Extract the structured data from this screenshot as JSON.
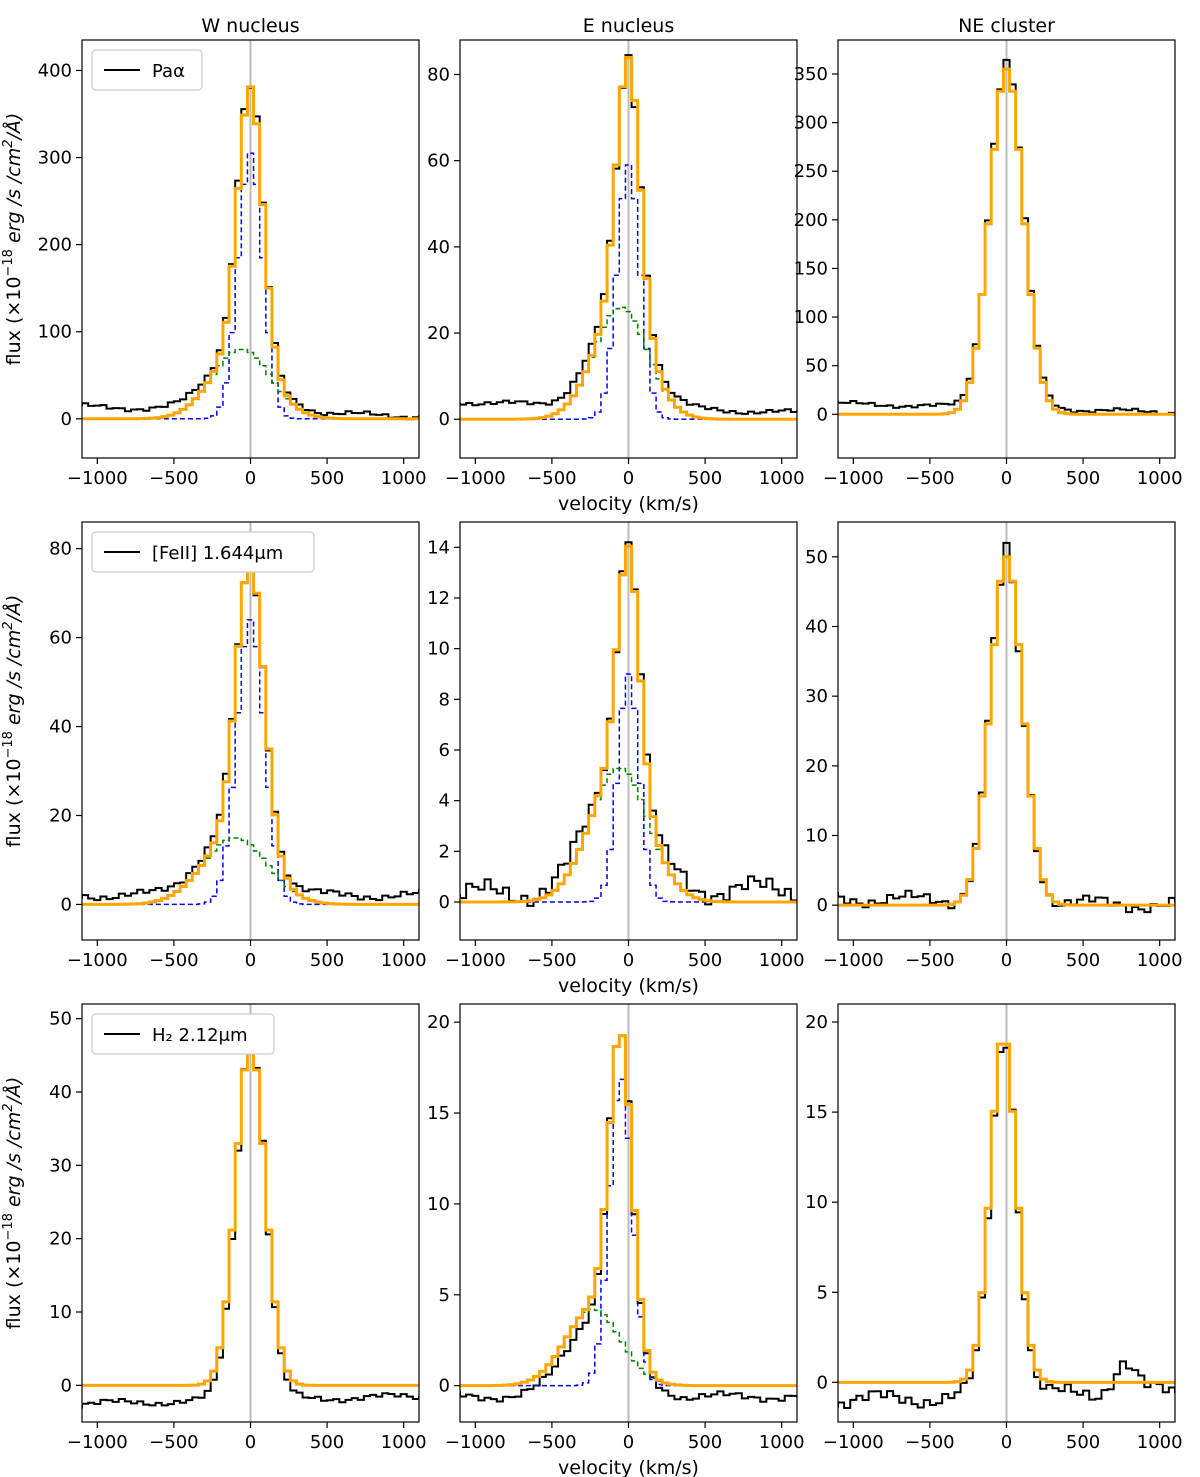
{
  "figure": {
    "column_titles": [
      "W nucleus",
      "E nucleus",
      "NE cluster"
    ],
    "ylabel": "flux (×10⁻¹⁸ erg /s /cm²/Å)",
    "xlabel": "velocity (km/s)",
    "legend_labels": [
      "Paα",
      "[FeII] 1.644μm",
      "H₂ 2.12μm"
    ],
    "colors": {
      "observed": "#000000",
      "total_fit": "#ffa500",
      "narrow_component": "#0000ff",
      "broad_component": "#008000",
      "zero_velocity": "#bbbbbb"
    }
  },
  "chart_data": [
    {
      "type": "line",
      "row": 0,
      "col": 0,
      "line": "Paα",
      "region": "W nucleus",
      "xlim": [
        -1100,
        1100
      ],
      "ylim": [
        -45,
        435
      ],
      "xticks": [
        -1000,
        -500,
        0,
        500,
        1000
      ],
      "yticks": [
        0,
        100,
        200,
        300,
        400
      ],
      "xlabel": "",
      "ylabel": "flux (×10⁻¹⁸ erg /s /cm²/Å)",
      "title": "W nucleus",
      "legend": "Paα",
      "fit": {
        "narrow": {
          "amp": 305,
          "center": 0,
          "sigma": 80
        },
        "broad": {
          "amp": 80,
          "center": -60,
          "sigma": 190
        }
      },
      "continuum_left": 14,
      "continuum_right": 3,
      "noise": 4,
      "pin": {
        "0": 380
      }
    },
    {
      "type": "line",
      "row": 0,
      "col": 1,
      "line": "Paα",
      "region": "E nucleus",
      "xlim": [
        -1100,
        1100
      ],
      "ylim": [
        -9,
        88
      ],
      "xticks": [
        -1000,
        -500,
        0,
        500,
        1000
      ],
      "yticks": [
        0,
        20,
        40,
        60,
        80
      ],
      "xlabel": "velocity (km/s)",
      "ylabel": "",
      "title": "E nucleus",
      "legend": "",
      "fit": {
        "narrow": {
          "amp": 59,
          "center": 0,
          "sigma": 75
        },
        "broad": {
          "amp": 26,
          "center": -50,
          "sigma": 175
        }
      },
      "continuum_left": 4,
      "continuum_right": 1.5,
      "noise": 0.8,
      "pin": {
        "0": 84.5
      }
    },
    {
      "type": "line",
      "row": 0,
      "col": 2,
      "line": "Paα",
      "region": "NE cluster",
      "xlim": [
        -1100,
        1100
      ],
      "ylim": [
        -45,
        385
      ],
      "xticks": [
        -1000,
        -500,
        0,
        500,
        1000
      ],
      "yticks": [
        0,
        50,
        100,
        150,
        200,
        250,
        300,
        350
      ],
      "xlabel": "",
      "ylabel": "",
      "title": "NE cluster",
      "legend": "",
      "fit": {
        "narrow": {
          "amp": 355,
          "center": 0,
          "sigma": 110
        },
        "broad": null
      },
      "show_components": false,
      "continuum_left": 11,
      "continuum_right": 2,
      "noise": 3,
      "pin": {}
    },
    {
      "type": "line",
      "row": 1,
      "col": 0,
      "line": "[FeII] 1.644μm",
      "region": "W nucleus",
      "xlim": [
        -1100,
        1100
      ],
      "ylim": [
        -8,
        86
      ],
      "xticks": [
        -1000,
        -500,
        0,
        500,
        1000
      ],
      "yticks": [
        0,
        20,
        40,
        60,
        80
      ],
      "xlabel": "",
      "ylabel": "flux (×10⁻¹⁸ erg /s /cm²/Å)",
      "title": "",
      "legend": "[FeII] 1.644μm",
      "fit": {
        "narrow": {
          "amp": 64,
          "center": 0,
          "sigma": 90
        },
        "broad": {
          "amp": 15,
          "center": -100,
          "sigma": 210
        }
      },
      "continuum_left": 2,
      "continuum_right": 2,
      "noise": 1.2,
      "pin": {
        "0": 77
      }
    },
    {
      "type": "line",
      "row": 1,
      "col": 1,
      "line": "[FeII] 1.644μm",
      "region": "E nucleus",
      "xlim": [
        -1100,
        1100
      ],
      "ylim": [
        -1.5,
        15
      ],
      "xticks": [
        -1000,
        -500,
        0,
        500,
        1000
      ],
      "yticks": [
        0,
        2,
        4,
        6,
        8,
        10,
        12,
        14
      ],
      "xlabel": "velocity (km/s)",
      "ylabel": "",
      "title": "",
      "legend": "",
      "fit": {
        "narrow": {
          "amp": 9,
          "center": 0,
          "sigma": 70
        },
        "broad": {
          "amp": 5.3,
          "center": -60,
          "sigma": 190
        }
      },
      "continuum_left": 0.3,
      "continuum_right": 0.5,
      "noise": 0.6,
      "pin": {
        "0": 14.2
      }
    },
    {
      "type": "line",
      "row": 1,
      "col": 2,
      "line": "[FeII] 1.644μm",
      "region": "NE cluster",
      "xlim": [
        -1100,
        1100
      ],
      "ylim": [
        -5,
        55
      ],
      "xticks": [
        -1000,
        -500,
        0,
        500,
        1000
      ],
      "yticks": [
        0,
        10,
        20,
        30,
        40,
        50
      ],
      "xlabel": "",
      "ylabel": "",
      "title": "",
      "legend": "",
      "fit": {
        "narrow": {
          "amp": 50,
          "center": 0,
          "sigma": 105
        },
        "broad": null
      },
      "show_components": false,
      "continuum_left": 1,
      "continuum_right": 0,
      "noise": 1.3,
      "pin": {
        "0": 52
      }
    },
    {
      "type": "line",
      "row": 2,
      "col": 0,
      "line": "H₂ 2.12μm",
      "region": "W nucleus",
      "xlim": [
        -1100,
        1100
      ],
      "ylim": [
        -5,
        52
      ],
      "xticks": [
        -1000,
        -500,
        0,
        500,
        1000
      ],
      "yticks": [
        0,
        10,
        20,
        30,
        40,
        50
      ],
      "xlabel": "",
      "ylabel": "flux (×10⁻¹⁸ erg /s /cm²/Å)",
      "title": "",
      "legend": "H₂ 2.12μm",
      "fit": {
        "narrow": {
          "amp": 47,
          "center": 0,
          "sigma": 95
        },
        "broad": null
      },
      "show_components": false,
      "continuum_left": -2.5,
      "continuum_right": -1.5,
      "noise": 0.6,
      "pin": {}
    },
    {
      "type": "line",
      "row": 2,
      "col": 1,
      "line": "H₂ 2.12μm",
      "region": "E nucleus",
      "xlim": [
        -1100,
        1100
      ],
      "ylim": [
        -2,
        21
      ],
      "xticks": [
        -1000,
        -500,
        0,
        500,
        1000
      ],
      "yticks": [
        0,
        5,
        10,
        15,
        20
      ],
      "xlabel": "velocity (km/s)",
      "ylabel": "",
      "title": "",
      "legend": "",
      "fit": {
        "narrow": {
          "amp": 17,
          "center": -50,
          "sigma": 75
        },
        "broad": {
          "amp": 4.2,
          "center": -230,
          "sigma": 180
        }
      },
      "continuum_left": -0.6,
      "continuum_right": -0.6,
      "noise": 0.3,
      "pin": {}
    },
    {
      "type": "line",
      "row": 2,
      "col": 2,
      "line": "H₂ 2.12μm",
      "region": "NE cluster",
      "xlim": [
        -1100,
        1100
      ],
      "ylim": [
        -2.2,
        21
      ],
      "xticks": [
        -1000,
        -500,
        0,
        500,
        1000
      ],
      "yticks": [
        0,
        5,
        10,
        15,
        20
      ],
      "xlabel": "",
      "ylabel": "",
      "title": "",
      "legend": "",
      "fit": {
        "narrow": {
          "amp": 19.3,
          "center": -20,
          "sigma": 85
        },
        "broad": null
      },
      "show_components": false,
      "continuum_left": -1,
      "continuum_right": -0.5,
      "noise": 0.6,
      "bump": {
        "center": 770,
        "amp": 1.7,
        "sigma": 70
      },
      "pin": {}
    }
  ]
}
